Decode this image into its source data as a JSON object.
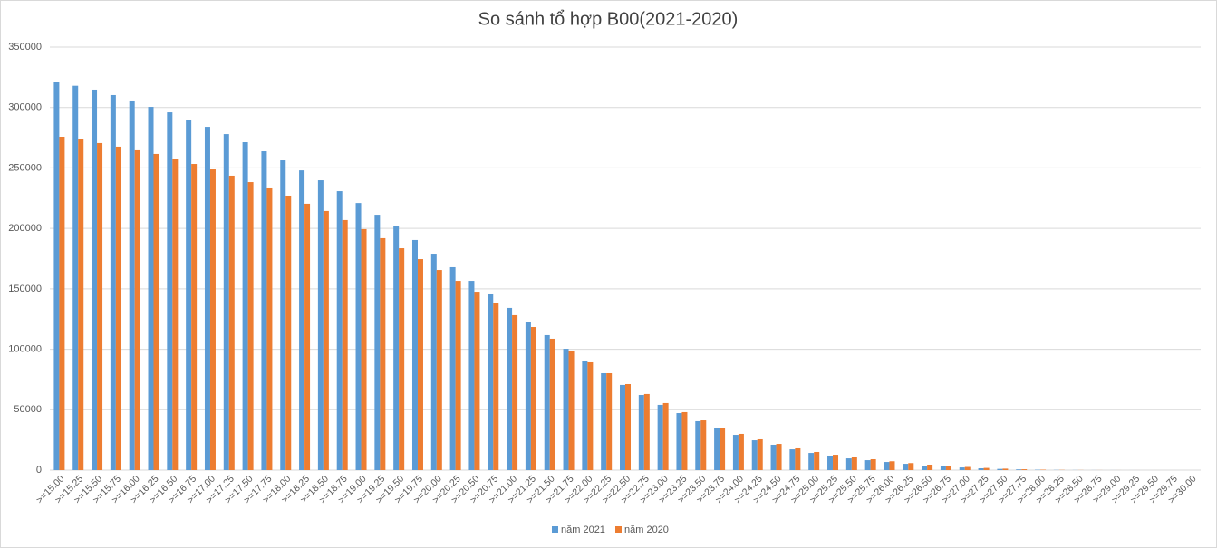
{
  "chart_data": {
    "type": "bar",
    "title": "So sánh tổ hợp B00(2021-2020)",
    "categories": [
      ">=15.00",
      ">=15.25",
      ">=15.50",
      ">=15.75",
      ">=16.00",
      ">=16.25",
      ">=16.50",
      ">=16.75",
      ">=17.00",
      ">=17.25",
      ">=17.50",
      ">=17.75",
      ">=18.00",
      ">=18.25",
      ">=18.50",
      ">=18.75",
      ">=19.00",
      ">=19.25",
      ">=19.50",
      ">=19.75",
      ">=20.00",
      ">=20.25",
      ">=20.50",
      ">=20.75",
      ">=21.00",
      ">=21.25",
      ">=21.50",
      ">=21.75",
      ">=22.00",
      ">=22.25",
      ">=22.50",
      ">=22.75",
      ">=23.00",
      ">=23.25",
      ">=23.50",
      ">=23.75",
      ">=24.00",
      ">=24.25",
      ">=24.50",
      ">=24.75",
      ">=25.00",
      ">=25.25",
      ">=25.50",
      ">=25.75",
      ">=26.00",
      ">=26.25",
      ">=26.50",
      ">=26.75",
      ">=27.00",
      ">=27.25",
      ">=27.50",
      ">=27.75",
      ">=28.00",
      ">=28.25",
      ">=28.50",
      ">=28.75",
      ">=29.00",
      ">=29.25",
      ">=29.50",
      ">=29.75",
      ">=30.00"
    ],
    "series": [
      {
        "name": "năm 2021",
        "color": "#5b9bd5",
        "values": [
          321000,
          318000,
          314800,
          310300,
          305800,
          300500,
          296000,
          290000,
          284000,
          278000,
          271300,
          263800,
          256300,
          248000,
          239800,
          230800,
          221000,
          211300,
          201600,
          190400,
          179100,
          167900,
          156600,
          145400,
          134200,
          122900,
          111700,
          100400,
          90000,
          80200,
          70500,
          62200,
          54000,
          47200,
          40500,
          34500,
          29200,
          24700,
          21000,
          17200,
          14200,
          12000,
          9700,
          8200,
          6700,
          5200,
          3700,
          3000,
          2200,
          1500,
          1000,
          600,
          300,
          150,
          80,
          40,
          20,
          10,
          5,
          2,
          1
        ]
      },
      {
        "name": "năm 2020",
        "color": "#ed7d31",
        "values": [
          275800,
          273600,
          270600,
          267600,
          264600,
          261600,
          257800,
          253300,
          248800,
          243600,
          238300,
          233100,
          227100,
          220400,
          214400,
          206900,
          199400,
          191900,
          183600,
          174600,
          165600,
          156600,
          147600,
          137900,
          128200,
          118400,
          108700,
          98900,
          89200,
          80200,
          71200,
          63000,
          55500,
          48000,
          41200,
          35200,
          30000,
          25500,
          21700,
          18000,
          15000,
          12700,
          10500,
          9000,
          7300,
          5800,
          4500,
          3500,
          2600,
          1800,
          1200,
          700,
          350,
          180,
          90,
          45,
          20,
          10,
          5,
          2,
          1
        ]
      }
    ],
    "ylim": [
      0,
      350000
    ],
    "yticks": [
      0,
      50000,
      100000,
      150000,
      200000,
      250000,
      300000,
      350000
    ],
    "grid": true
  }
}
